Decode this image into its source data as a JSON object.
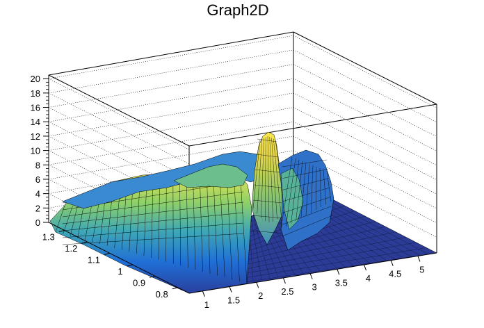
{
  "chart_data": {
    "type": "surface",
    "title": "Graph2D",
    "z_ticks": [
      "0",
      "2",
      "4",
      "6",
      "8",
      "10",
      "12",
      "14",
      "16",
      "18",
      "20"
    ],
    "x_ticks": [
      "1",
      "1.5",
      "2",
      "2.5",
      "3",
      "3.5",
      "4",
      "4.5",
      "5"
    ],
    "y_ticks": [
      "0.8",
      "0.9",
      "1",
      "1.1",
      "1.2",
      "1.3"
    ],
    "x_range": [
      0.75,
      5.35
    ],
    "y_range": [
      0.75,
      1.37
    ],
    "z_range": [
      0,
      20.5
    ],
    "grid": true,
    "colormap": "viridis-like (blue → green → yellow)",
    "features": [
      {
        "label": "broad plateau",
        "x_range": [
          0.75,
          1.9
        ],
        "y_range": [
          0.8,
          1.35
        ],
        "z_approx": [
          2,
          9
        ]
      },
      {
        "label": "sharp peak",
        "x": 2.55,
        "y": 1.0,
        "z_approx": 12.5
      },
      {
        "label": "secondary ridge",
        "x_range": [
          2.6,
          3.3
        ],
        "y_range": [
          0.95,
          1.25
        ],
        "z_approx": [
          4,
          10
        ]
      },
      {
        "label": "flat floor",
        "x_range": [
          2.5,
          5.35
        ],
        "y_range": [
          0.75,
          1.37
        ],
        "z_approx": 0
      }
    ],
    "wire_color": "#000000",
    "box_color": "#000000"
  }
}
